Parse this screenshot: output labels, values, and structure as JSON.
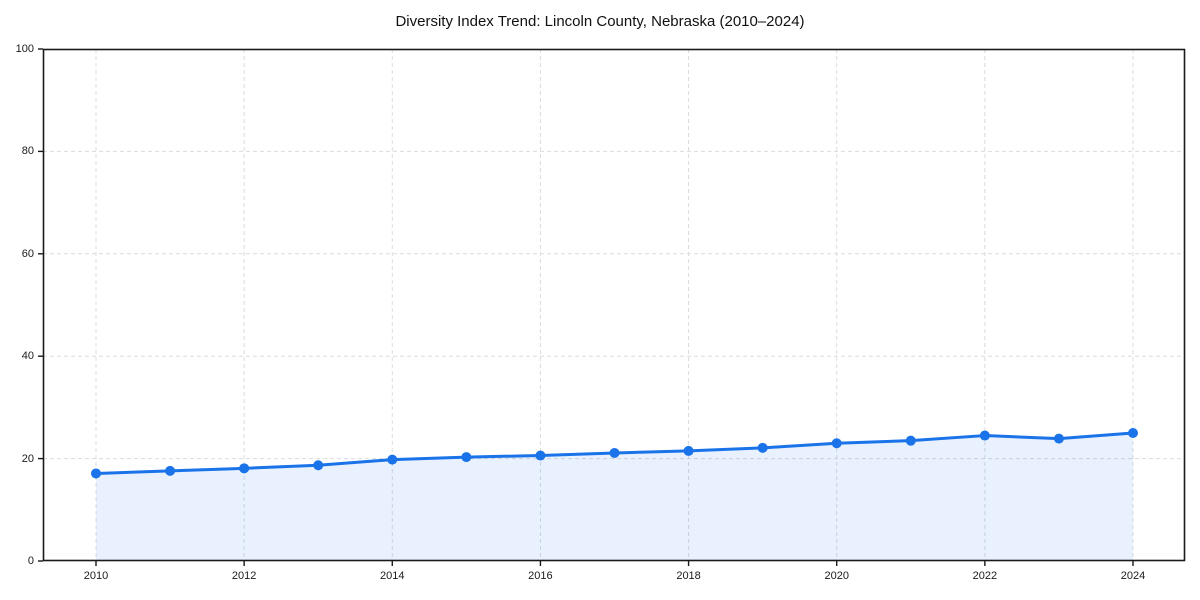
{
  "chart_data": {
    "type": "area",
    "title": "Diversity Index Trend: Lincoln County, Nebraska (2010–2024)",
    "x": [
      2010,
      2011,
      2012,
      2013,
      2014,
      2015,
      2016,
      2017,
      2018,
      2019,
      2020,
      2021,
      2022,
      2023,
      2024
    ],
    "series": [
      {
        "name": "Diversity Index",
        "values": [
          17.1,
          17.6,
          18.1,
          18.7,
          19.8,
          20.3,
          20.6,
          21.1,
          21.5,
          22.1,
          23.0,
          23.5,
          24.5,
          23.9,
          25.0
        ]
      }
    ],
    "xlabel": "",
    "ylabel": "",
    "xticks": [
      2010,
      2012,
      2014,
      2016,
      2018,
      2020,
      2022,
      2024
    ],
    "yticks": [
      0,
      20,
      40,
      60,
      80,
      100
    ],
    "ylim": [
      0,
      100
    ],
    "grid": "dashed-both-axes",
    "legend": false,
    "colors": {
      "line": "#1a73e8",
      "marker": "#1a73e8",
      "fill": "#1a73e8",
      "fill_opacity": "0.10",
      "grid": "#dcdcdc",
      "axis": "#1a1a1a",
      "text": "#1a1a1a",
      "title": "#111111",
      "background": "#ffffff"
    }
  }
}
